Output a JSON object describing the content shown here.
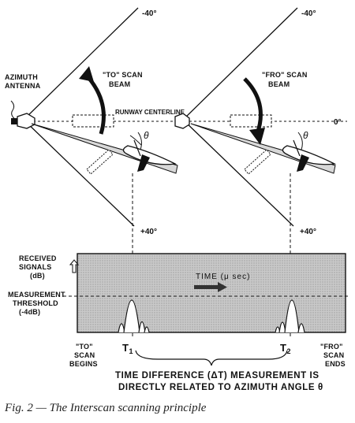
{
  "labels": {
    "angle_minus40_left": "-40°",
    "angle_minus40_right": "-40°",
    "angle_zero": "0°",
    "angle_plus40_left": "+40°",
    "angle_plus40_right": "+40°",
    "antenna_l1": "AZIMUTH",
    "antenna_l2": "ANTENNA",
    "to_beam_l1": "\"TO\" SCAN",
    "to_beam_l2": "BEAM",
    "fro_beam_l1": "\"FRO\" SCAN",
    "fro_beam_l2": "BEAM",
    "runway": "RUNWAY CENTERLINE",
    "theta_left": "θ",
    "theta_right": "θ"
  },
  "plot": {
    "received_l1": "RECEIVED",
    "received_l2": "SIGNALS",
    "received_l3": "(dB)",
    "threshold_l1": "MEASUREMENT",
    "threshold_l2": "THRESHOLD",
    "threshold_l3": "(-4dB)",
    "time": "TIME (μ sec)",
    "t1": "T",
    "t1_sub": "1",
    "t2": "T",
    "t2_sub": "2",
    "to_begins_l1": "\"TO\"",
    "to_begins_l2": "SCAN",
    "to_begins_l3": "BEGINS",
    "fro_ends_l1": "\"FRO\"",
    "fro_ends_l2": "SCAN",
    "fro_ends_l3": "ENDS",
    "diff_l1": "TIME DIFFERENCE (ΔT)  MEASUREMENT IS",
    "diff_l2": "DIRECTLY RELATED TO AZIMUTH ANGLE θ"
  },
  "caption": "Fig. 2 — The Interscan scanning principle"
}
